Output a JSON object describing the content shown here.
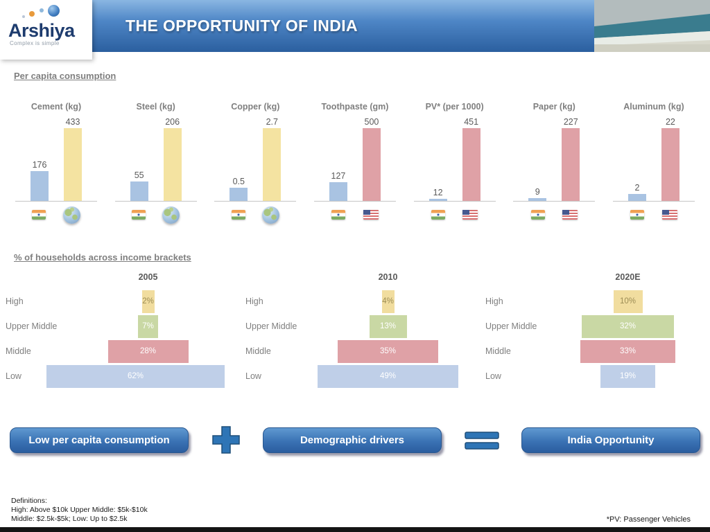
{
  "header": {
    "title": "THE OPPORTUNITY OF INDIA",
    "logo_text": "Arshiya",
    "logo_tagline": "Complex is simple"
  },
  "sections": {
    "per_capita_title": "Per capita consumption",
    "income_title": "% of households across income brackets"
  },
  "equation": {
    "left_label": "Low per capita consumption",
    "middle_label": "Demographic drivers",
    "right_label": "India Opportunity"
  },
  "footer": {
    "definitions_title": "Definitions:",
    "definitions_line1": "High: Above $10k Upper Middle: $5k-$10k",
    "definitions_line2": "Middle: $2.5k-$5k; Low: Up to $2.5k",
    "pv_note": "*PV: Passenger Vehicles"
  },
  "colors": {
    "india_bar": "#a9c3e2",
    "world_bar": "#f4e3a1",
    "usa_bar": "#dfa1a6",
    "pyramid_high": "#f1dd9f",
    "pyramid_upper_middle": "#c9d8a4",
    "pyramid_middle": "#dfa1a6",
    "pyramid_low": "#bfcfe8",
    "banner_blue": "#2e75b6",
    "button_blue": "#2b5d9f"
  },
  "chart_data": [
    {
      "type": "bar",
      "title": "Per capita consumption",
      "layout": "seven small paired-bar charts, India vs comparison country, values labeled above bars, flags/globe below baseline",
      "charts": [
        {
          "title": "Cement (kg)",
          "categories": [
            "India",
            "World"
          ],
          "values": [
            176,
            433
          ]
        },
        {
          "title": "Steel (kg)",
          "categories": [
            "India",
            "World"
          ],
          "values": [
            55,
            206
          ]
        },
        {
          "title": "Copper (kg)",
          "categories": [
            "India",
            "World"
          ],
          "values": [
            0.5,
            2.7
          ]
        },
        {
          "title": "Toothpaste (gm)",
          "categories": [
            "India",
            "USA"
          ],
          "values": [
            127,
            500
          ]
        },
        {
          "title": "PV* (per 1000)",
          "categories": [
            "India",
            "USA"
          ],
          "values": [
            12,
            451
          ]
        },
        {
          "title": "Paper (kg)",
          "categories": [
            "India",
            "USA"
          ],
          "values": [
            9,
            227
          ]
        },
        {
          "title": "Aluminum (kg)",
          "categories": [
            "India",
            "USA"
          ],
          "values": [
            2,
            22
          ]
        }
      ]
    },
    {
      "type": "bar",
      "title": "% of households across income brackets",
      "layout": "three horizontal centered pyramid charts by year, percent labels inside bars",
      "categories": [
        "High",
        "Upper Middle",
        "Middle",
        "Low"
      ],
      "unit": "%",
      "series": [
        {
          "name": "2005",
          "values": [
            2,
            7,
            28,
            62
          ]
        },
        {
          "name": "2010",
          "values": [
            4,
            13,
            35,
            49
          ]
        },
        {
          "name": "2020E",
          "values": [
            10,
            32,
            33,
            19
          ]
        }
      ]
    }
  ]
}
